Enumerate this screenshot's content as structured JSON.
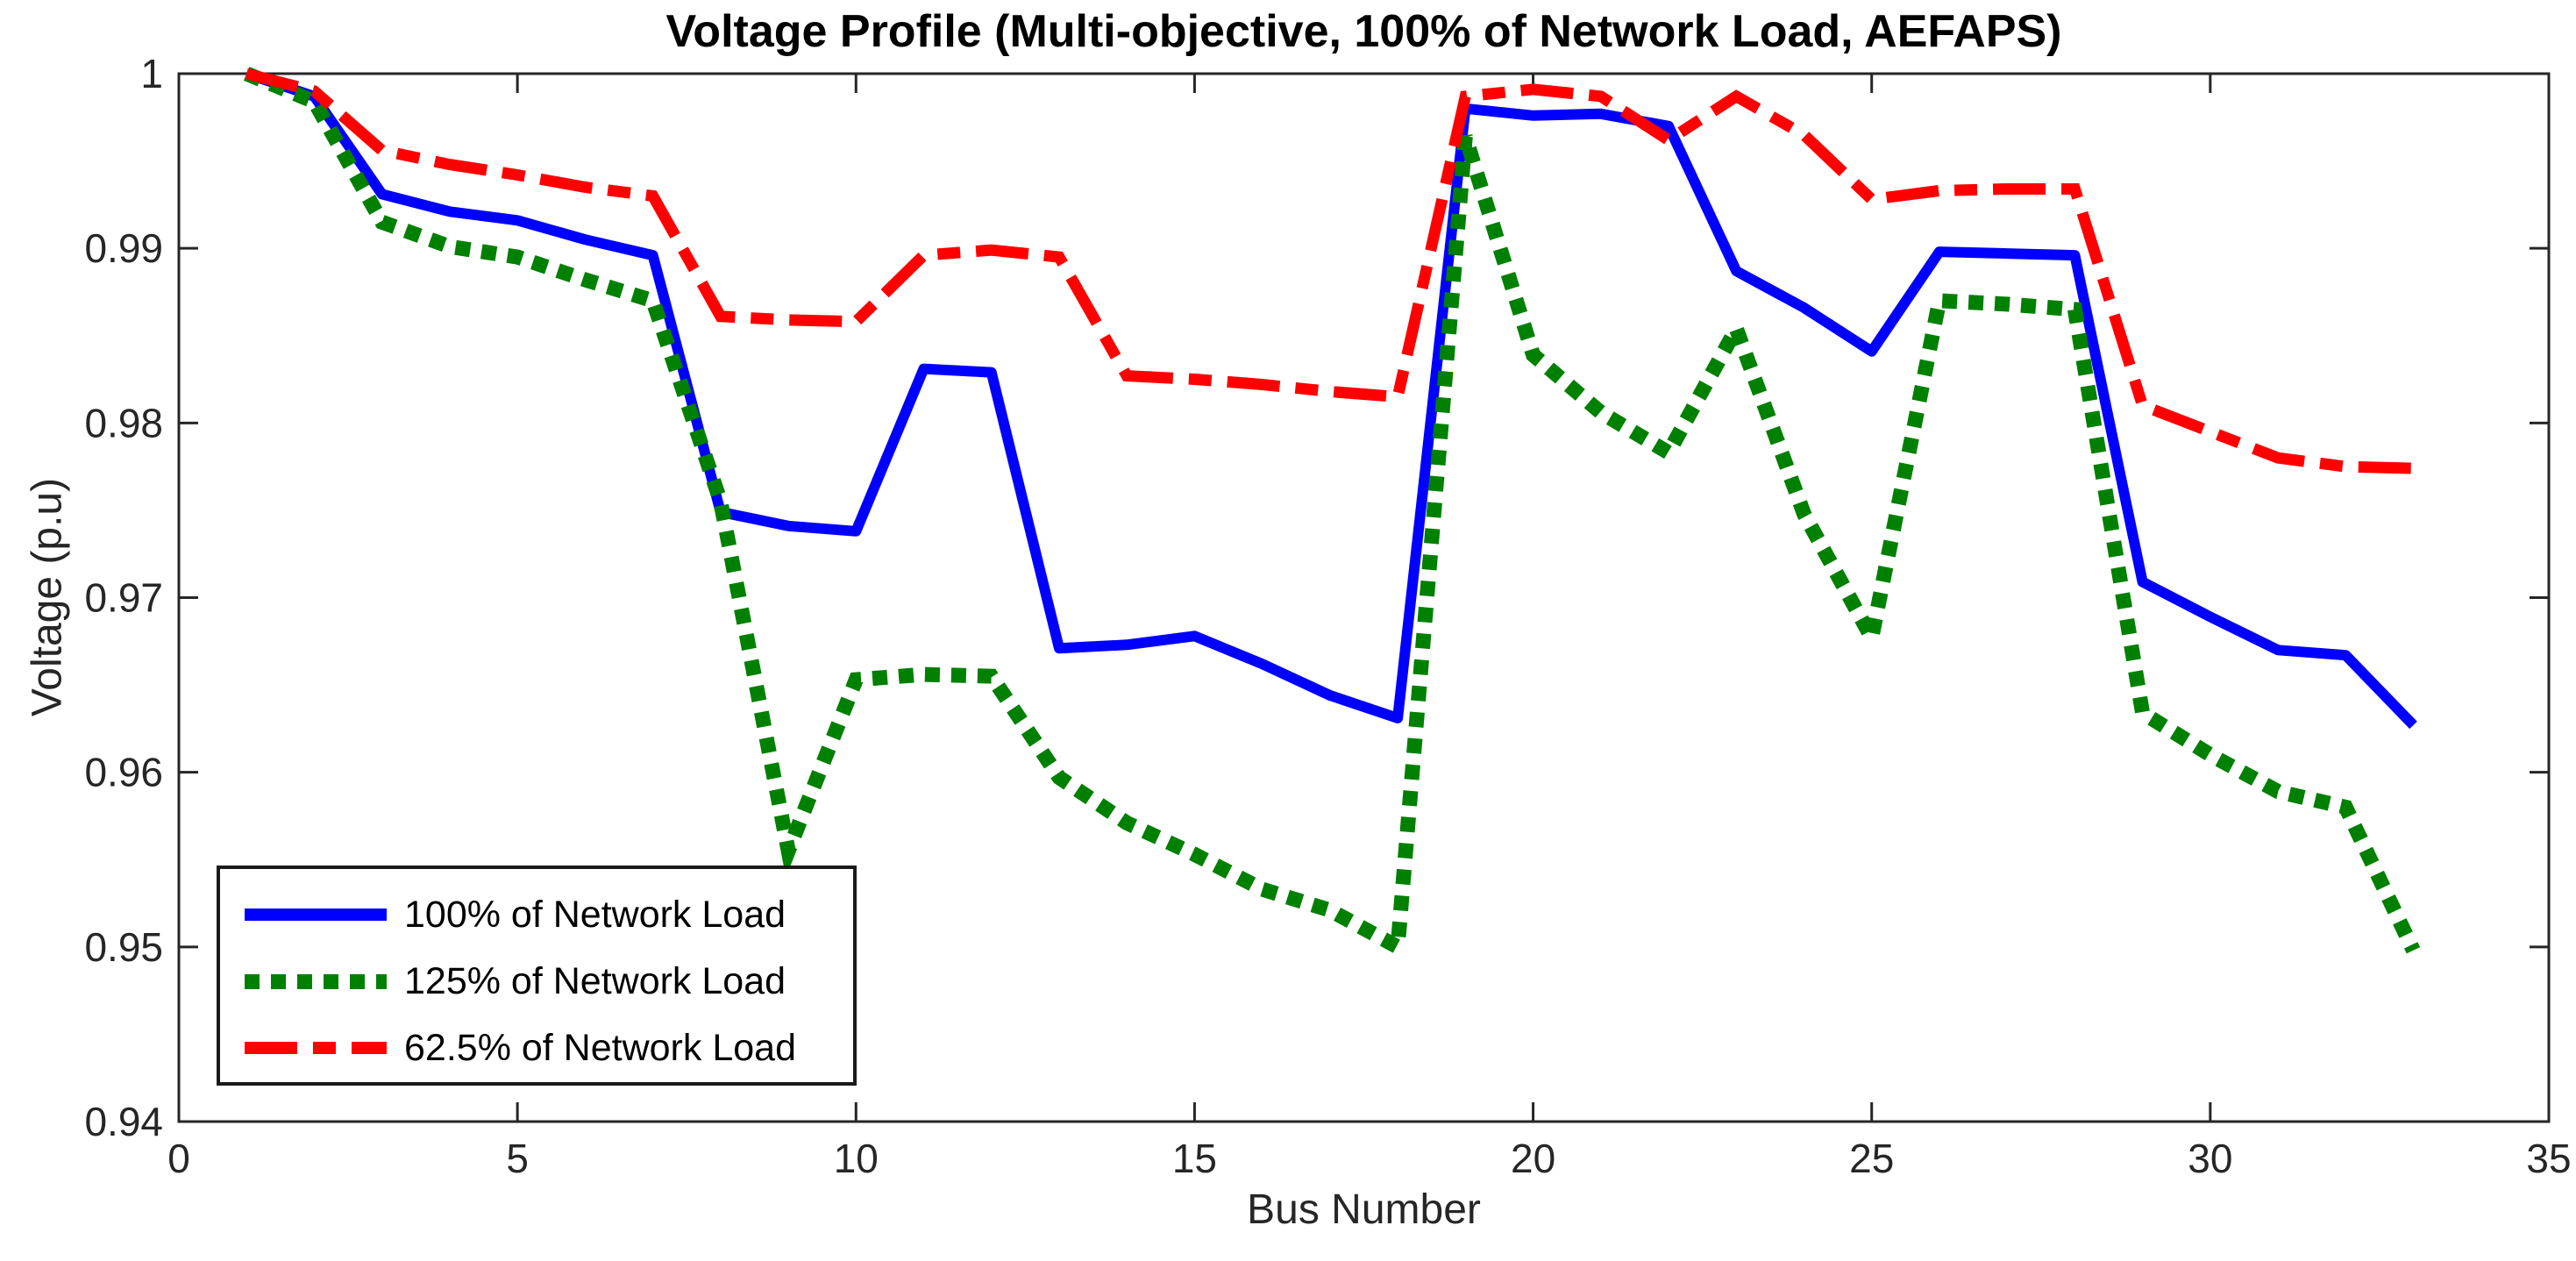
{
  "page": {
    "background": "#FFFFFF",
    "axis_color": "#262626"
  },
  "chart_data": {
    "type": "line",
    "title": "Voltage Profile (Multi-objective, 100% of Network Load, AEFAPS)",
    "xlabel": "Bus Number",
    "ylabel": "Voltage (p.u)",
    "xlim": [
      0,
      35
    ],
    "ylim": [
      0.94,
      1.0
    ],
    "x_ticks": [
      0,
      5,
      10,
      15,
      20,
      25,
      30,
      35
    ],
    "x_tick_labels": [
      "0",
      "5",
      "10",
      "15",
      "20",
      "25",
      "30",
      "35"
    ],
    "y_ticks": [
      0.94,
      0.95,
      0.96,
      0.97,
      0.98,
      0.99,
      1.0
    ],
    "y_tick_labels": [
      "0.94",
      "0.95",
      "0.96",
      "0.97",
      "0.98",
      "0.99",
      "1"
    ],
    "grid": false,
    "legend_position": "lower-left",
    "x": [
      1,
      2,
      3,
      4,
      5,
      6,
      7,
      8,
      9,
      10,
      11,
      12,
      13,
      14,
      15,
      16,
      17,
      18,
      19,
      20,
      21,
      22,
      23,
      24,
      25,
      26,
      27,
      28,
      29,
      30,
      31,
      32,
      33
    ],
    "series": [
      {
        "name": "100% of Network Load",
        "color": "#0000FF",
        "style": "solid",
        "values": [
          1.0,
          0.9987,
          0.9931,
          0.9921,
          0.9916,
          0.9905,
          0.9896,
          0.9749,
          0.9741,
          0.9738,
          0.9831,
          0.9829,
          0.9671,
          0.9673,
          0.9678,
          0.9662,
          0.9644,
          0.9631,
          0.998,
          0.9976,
          0.9977,
          0.997,
          0.9887,
          0.9866,
          0.9841,
          0.9898,
          0.9897,
          0.9896,
          0.9709,
          0.9689,
          0.967,
          0.9667,
          0.9627
        ]
      },
      {
        "name": "125% of Network Load",
        "color": "#008000",
        "style": "dotted",
        "values": [
          1.0,
          0.9984,
          0.9915,
          0.9901,
          0.9895,
          0.9882,
          0.987,
          0.9755,
          0.9555,
          0.9653,
          0.9656,
          0.9655,
          0.9597,
          0.9571,
          0.9553,
          0.9533,
          0.9521,
          0.95,
          0.9964,
          0.9839,
          0.9806,
          0.9783,
          0.9854,
          0.9748,
          0.9677,
          0.987,
          0.9868,
          0.9865,
          0.9634,
          0.961,
          0.9589,
          0.958,
          0.9498
        ]
      },
      {
        "name": "62.5% of Network Load",
        "color": "#FF0000",
        "style": "dash-dot",
        "values": [
          1.0,
          0.999,
          0.9956,
          0.9948,
          0.9942,
          0.9935,
          0.993,
          0.9861,
          0.9859,
          0.9858,
          0.9896,
          0.9899,
          0.9895,
          0.9827,
          0.9825,
          0.9822,
          0.9818,
          0.9815,
          0.9987,
          0.9991,
          0.9987,
          0.9962,
          0.9987,
          0.9965,
          0.9928,
          0.9933,
          0.9934,
          0.9934,
          0.981,
          0.9795,
          0.978,
          0.9775,
          0.9774
        ]
      }
    ]
  }
}
